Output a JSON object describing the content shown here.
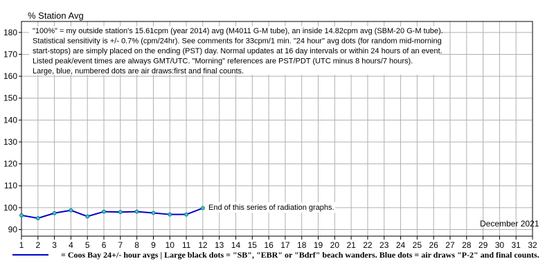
{
  "chart_data": {
    "type": "line",
    "title": "% Station Avg",
    "x": [
      1,
      2,
      3,
      4,
      5,
      6,
      7,
      8,
      9,
      10,
      11,
      12
    ],
    "xlim": [
      1,
      32
    ],
    "ylim": [
      87,
      185
    ],
    "x_ticks": [
      "1",
      "2",
      "3",
      "4",
      "5",
      "6",
      "7",
      "8",
      "9",
      "10",
      "11",
      "12",
      "13",
      "14",
      "15",
      "16",
      "17",
      "18",
      "19",
      "20",
      "21",
      "22",
      "23",
      "24",
      "25",
      "26",
      "27",
      "28",
      "29",
      "30",
      "31",
      "32"
    ],
    "y_ticks": [
      90,
      100,
      110,
      120,
      130,
      140,
      150,
      160,
      170,
      180
    ],
    "grid": true,
    "series": [
      {
        "name": "Coos Bay 24+/- hour avgs",
        "color": "#0000cc",
        "marker_color": "#33cccc",
        "values": [
          96.5,
          95.2,
          97.5,
          98.8,
          96.0,
          98.2,
          98.0,
          98.2,
          97.6,
          96.9,
          96.9,
          99.8
        ]
      }
    ],
    "month_label": "December 2021",
    "notes": [
      "\"100%\" = my outside station's 15.61cpm (year 2014) avg (M4011 G-M tube), an inside 14.82cpm avg (SBM-20 G-M tube).",
      "Statistical sensitivity is +/- 0.7% (cpm/24hr). See comments for 33cpm/1 min. \"24 hour\" avg dots (for random mid-morning",
      "start-stops) are simply placed on the ending (PST) day. Normal updates at 16 day intervals or within 24 hours of an event.",
      "Listed peak/event times are always GMT/UTC.  \"Morning\" references are PST/PDT (UTC minus 8 hours/7 hours).",
      "Large, blue, numbered dots are air draws:first and final counts."
    ],
    "annotation": "End of this series of radiation graphs.",
    "legend_text": "= Coos Bay 24+/- hour avgs | Large black dots = \"SB\", \"EBR\" or \"Bdrf\" beach wanders. Blue dots = air draws \"P-2\" and final counts."
  }
}
